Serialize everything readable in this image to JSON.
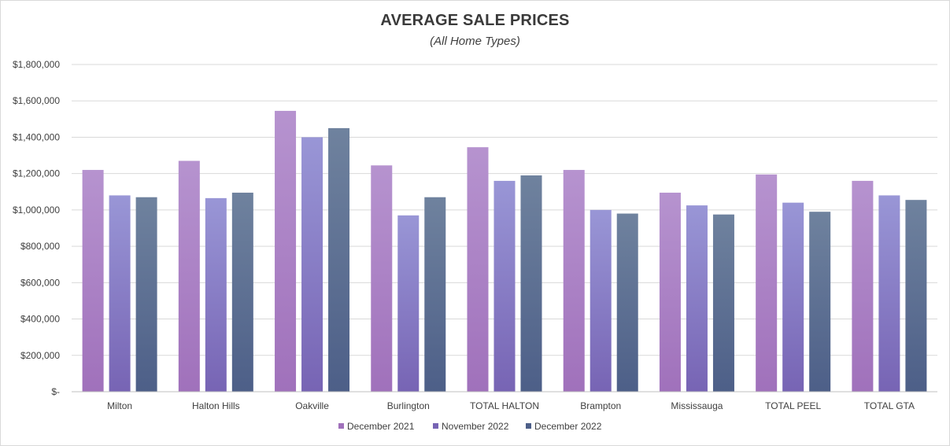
{
  "chart_data": {
    "type": "bar",
    "title": "AVERAGE SALE PRICES",
    "subtitle": "(All Home Types)",
    "xlabel": "",
    "ylabel": "",
    "ylim": [
      0,
      1800000
    ],
    "y_ticks": [
      0,
      200000,
      400000,
      600000,
      800000,
      1000000,
      1200000,
      1400000,
      1600000,
      1800000
    ],
    "y_tick_labels": [
      "$-",
      "$200,000",
      "$400,000",
      "$600,000",
      "$800,000",
      "$1,000,000",
      "$1,200,000",
      "$1,400,000",
      "$1,600,000",
      "$1,800,000"
    ],
    "grid": true,
    "legend_position": "bottom",
    "categories": [
      "Milton",
      "Halton Hills",
      "Oakville",
      "Burlington",
      "TOTAL HALTON",
      "Brampton",
      "Mississauga",
      "TOTAL PEEL",
      "TOTAL GTA"
    ],
    "series": [
      {
        "name": "December 2021",
        "color_top": "#b693cf",
        "color_bottom": "#a071bb",
        "values": [
          1220000,
          1270000,
          1545000,
          1245000,
          1345000,
          1220000,
          1095000,
          1195000,
          1160000
        ]
      },
      {
        "name": "November 2022",
        "color_top": "#9996d6",
        "color_bottom": "#7764b4",
        "values": [
          1080000,
          1065000,
          1400000,
          970000,
          1160000,
          1000000,
          1025000,
          1040000,
          1080000
        ]
      },
      {
        "name": "December 2022",
        "color_top": "#6f829e",
        "color_bottom": "#4d5f88",
        "values": [
          1070000,
          1095000,
          1450000,
          1070000,
          1190000,
          980000,
          975000,
          990000,
          1055000
        ]
      }
    ]
  }
}
